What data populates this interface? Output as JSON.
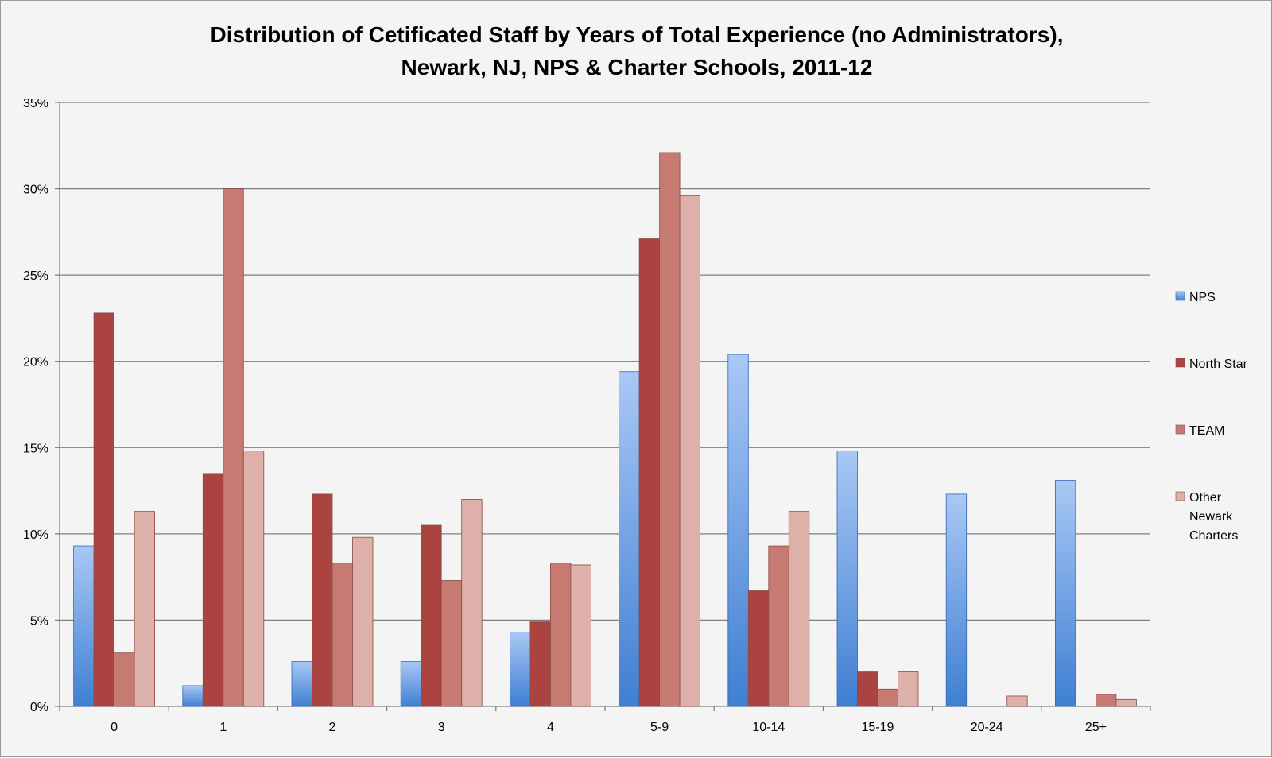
{
  "chart_data": {
    "type": "bar",
    "title": "Distribution of Cetificated Staff by Years of Total Experience (no Administrators),",
    "subtitle": "Newark, NJ, NPS & Charter Schools, 2011-12",
    "xlabel": "",
    "ylabel": "",
    "ylim": [
      0,
      35
    ],
    "yticks": [
      0,
      5,
      10,
      15,
      20,
      25,
      30,
      35
    ],
    "ytick_labels": [
      "0%",
      "5%",
      "10%",
      "15%",
      "20%",
      "25%",
      "30%",
      "35%"
    ],
    "categories": [
      "0",
      "1",
      "2",
      "3",
      "4",
      "5-9",
      "10-14",
      "15-19",
      "20-24",
      "25+"
    ],
    "series": [
      {
        "name": "NPS",
        "color_light": "#a9c8f5",
        "color_dark": "#3f7fd2",
        "values": [
          9.3,
          1.2,
          2.6,
          2.6,
          4.3,
          19.4,
          20.4,
          14.8,
          12.3,
          13.1
        ]
      },
      {
        "name": "North Star",
        "color": "#ab4440",
        "values": [
          22.8,
          13.5,
          12.3,
          10.5,
          4.9,
          27.1,
          6.7,
          2.0,
          0,
          0
        ]
      },
      {
        "name": "TEAM",
        "color": "#c77a72",
        "values": [
          3.1,
          30.0,
          8.3,
          7.3,
          8.3,
          32.1,
          9.3,
          1.0,
          0,
          0.7
        ]
      },
      {
        "name": "Other Newark Charters",
        "color": "#ddb0aa",
        "legend_lines": [
          "Other",
          "Newark",
          "Charters"
        ],
        "values": [
          11.3,
          14.8,
          9.8,
          12.0,
          8.2,
          29.6,
          11.3,
          2.0,
          0.6,
          0.4
        ]
      }
    ],
    "grid": true,
    "legend_position": "right"
  }
}
